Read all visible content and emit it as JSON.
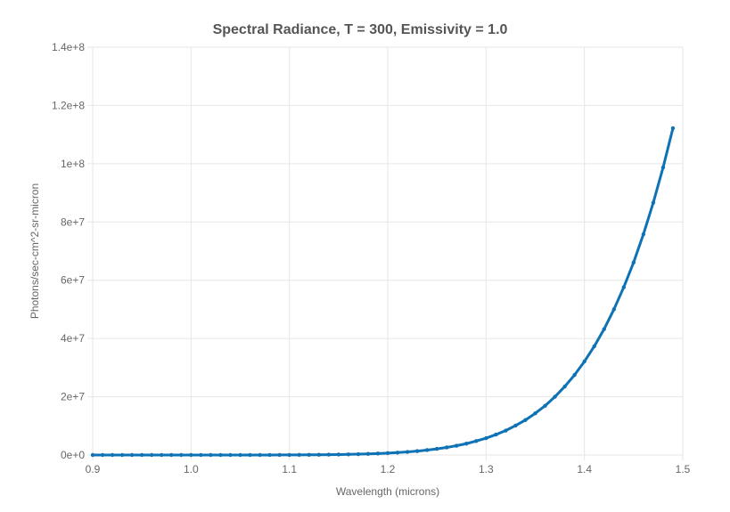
{
  "chart_data": {
    "type": "line",
    "title": "Spectral Radiance, T = 300, Emissivity = 1.0",
    "xlabel": "Wavelength (microns)",
    "ylabel": "Photons/sec-cm^2-sr-micron",
    "xlim": [
      0.9,
      1.5
    ],
    "ylim": [
      0,
      140000000
    ],
    "x_ticks": [
      "0.9",
      "1.0",
      "1.1",
      "1.2",
      "1.3",
      "1.4",
      "1.5"
    ],
    "y_ticks": [
      "0e+0",
      "2e+7",
      "4e+7",
      "6e+7",
      "8e+7",
      "1e+8",
      "1.2e+8",
      "1.4e+8"
    ],
    "grid": true,
    "line_color": "#0e72b5",
    "series": [
      {
        "x": [
          0.9,
          0.91,
          0.92,
          0.93,
          0.94,
          0.95,
          0.96,
          0.97,
          0.98,
          0.99,
          1.0,
          1.01,
          1.02,
          1.03,
          1.04,
          1.05,
          1.06,
          1.07,
          1.08,
          1.09,
          1.1,
          1.11,
          1.12,
          1.13,
          1.14,
          1.15,
          1.16,
          1.17,
          1.18,
          1.19,
          1.2,
          1.21,
          1.22,
          1.23,
          1.24,
          1.25,
          1.26,
          1.27,
          1.28,
          1.29,
          1.3,
          1.31,
          1.32,
          1.33,
          1.34,
          1.35,
          1.36,
          1.37,
          1.38,
          1.39,
          1.4,
          1.41,
          1.42,
          1.43,
          1.44,
          1.45,
          1.46,
          1.47,
          1.48,
          1.49
        ],
        "y": [
          0,
          0,
          0,
          0,
          0,
          0,
          0,
          0,
          0,
          0,
          0,
          0,
          0,
          0,
          0,
          0,
          0,
          0,
          10000,
          20000,
          30000,
          40000,
          60000,
          90000,
          120000,
          160000,
          220000,
          290000,
          380000,
          500000,
          650000,
          830000,
          1060000,
          1340000,
          1690000,
          2110000,
          2600000,
          3200000,
          3900000,
          4800000,
          5800000,
          7000000,
          8400000,
          10100000,
          12000000,
          14300000,
          16900000,
          20000000,
          23500000,
          27500000,
          32100000,
          37300000,
          43200000,
          50000000,
          57600000,
          66100000,
          75800000,
          86600000,
          98700000,
          112200000
        ]
      }
    ]
  }
}
